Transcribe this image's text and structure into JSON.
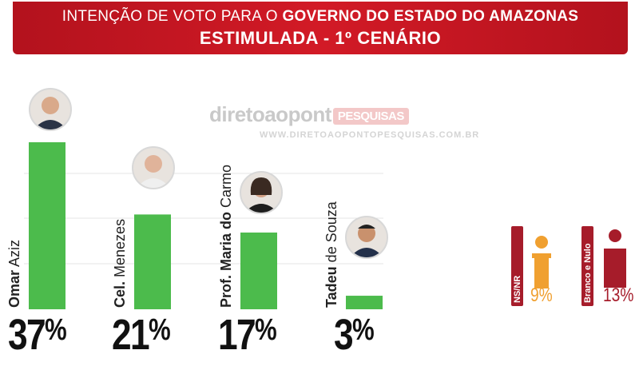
{
  "header": {
    "line1_prefix": "INTENÇÃO DE VOTO PARA O",
    "line1_bold": "GOVERNO DO ESTADO DO AMAZONAS",
    "line2": "ESTIMULADA - 1º CENÁRIO"
  },
  "watermark": {
    "brand": "diretoaopont",
    "pill": "PESQUISAS",
    "url": "WWW.DIRETOAOPONTOPESQUISAS.COM.BR"
  },
  "colors": {
    "bar": "#4cbb4c",
    "banner": "#c8161f",
    "nsnr": "#f0a030",
    "branco": "#a61c2a"
  },
  "chart_data": {
    "type": "bar",
    "title": "INTENÇÃO DE VOTO PARA O GOVERNO DO ESTADO DO AMAZONAS",
    "subtitle": "ESTIMULADA - 1º CENÁRIO",
    "categories": [
      "Omar Aziz",
      "Cel. Menezes",
      "Prof. Maria do Carmo",
      "Tadeu de Souza"
    ],
    "values": [
      37,
      21,
      17,
      3
    ],
    "value_labels": [
      "37%",
      "21%",
      "17%",
      "3%"
    ],
    "ylim": [
      0,
      37
    ],
    "grid": true,
    "extra": [
      {
        "name": "NS/NR",
        "value": 9,
        "label": "9%"
      },
      {
        "name": "Branco e Nulo",
        "value": 13,
        "label": "13%"
      }
    ]
  },
  "candidates": [
    {
      "first": "Omar",
      "last": "Aziz",
      "pct": "37",
      "sym": "%"
    },
    {
      "first": "Cel.",
      "last": "Menezes",
      "pct": "21",
      "sym": "%"
    },
    {
      "first": "Prof. Maria do",
      "last": "Carmo",
      "pct": "17",
      "sym": "%"
    },
    {
      "first": "Tadeu",
      "last": "de Souza",
      "pct": "3",
      "sym": "%"
    }
  ],
  "side": [
    {
      "label": "NS/NR",
      "value": "9%"
    },
    {
      "label": "Branco e Nulo",
      "value": "13%"
    }
  ]
}
